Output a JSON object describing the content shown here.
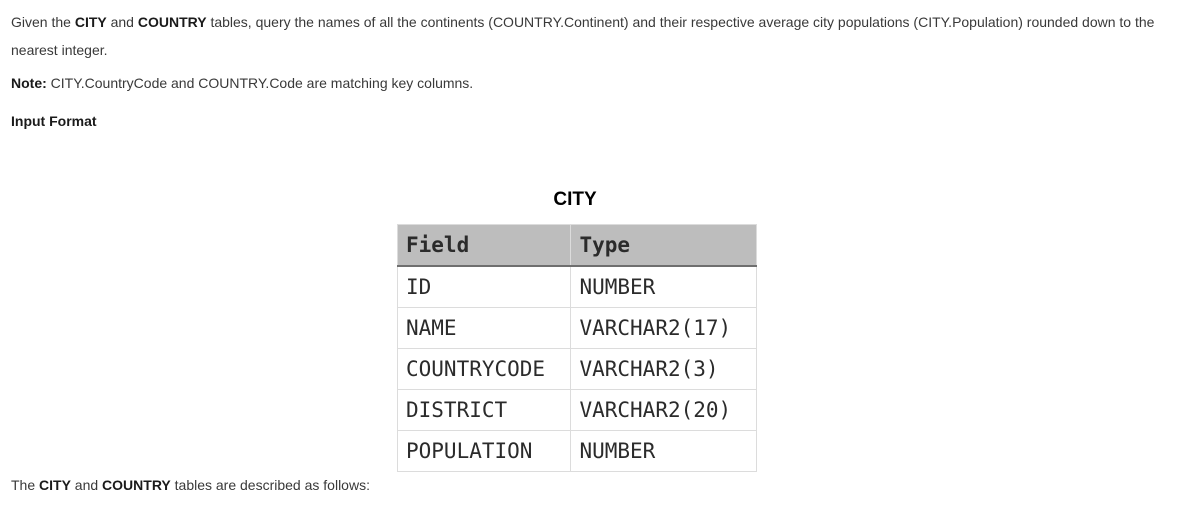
{
  "intro": {
    "t1": "Given the ",
    "b1": "CITY",
    "t2": " and ",
    "b2": "COUNTRY",
    "t3": " tables, query the names of all the continents (COUNTRY.Continent) and their respective average city populations (CITY.Population) rounded down to the nearest integer."
  },
  "note": {
    "label": "Note:",
    "text": " CITY.CountryCode and COUNTRY.Code are matching key columns."
  },
  "input_format": {
    "heading": "Input Format"
  },
  "table": {
    "title": "CITY",
    "headers": {
      "field": "Field",
      "type": "Type"
    },
    "rows": [
      {
        "field": "ID",
        "type": "NUMBER"
      },
      {
        "field": "NAME",
        "type": "VARCHAR2(17)"
      },
      {
        "field": "COUNTRYCODE",
        "type": "VARCHAR2(3)"
      },
      {
        "field": "DISTRICT",
        "type": "VARCHAR2(20)"
      },
      {
        "field": "POPULATION",
        "type": "NUMBER"
      }
    ]
  },
  "description": {
    "t1": "The ",
    "b1": "CITY",
    "t2": " and ",
    "b2": "COUNTRY",
    "t3": " tables are described as follows:"
  }
}
